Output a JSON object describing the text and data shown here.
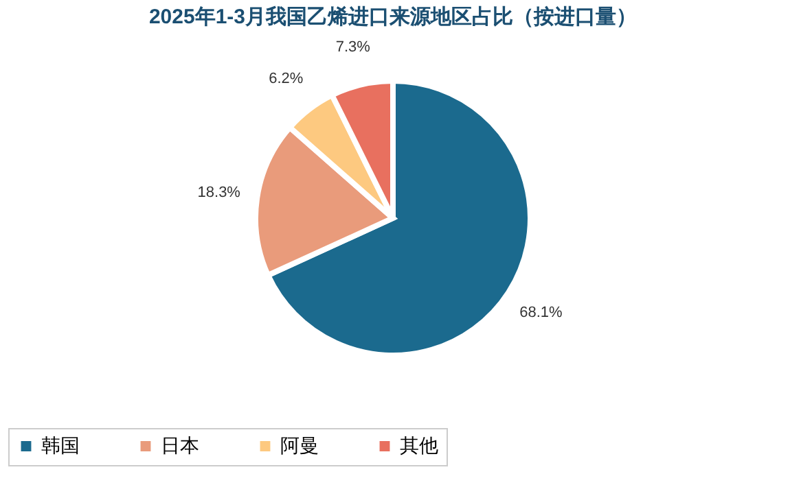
{
  "chart_data": {
    "type": "pie",
    "title": "2025年1-3月我国乙烯进口来源地区占比（按进口量）",
    "categories": [
      "韩国",
      "日本",
      "阿曼",
      "其他"
    ],
    "values": [
      68.1,
      18.3,
      6.2,
      7.3
    ],
    "value_labels": [
      "68.1%",
      "18.3%",
      "6.2%",
      "7.3%"
    ],
    "colors": [
      "#1b6a8e",
      "#e99b7b",
      "#fdc980",
      "#e8705f"
    ],
    "legend": "bottom"
  }
}
